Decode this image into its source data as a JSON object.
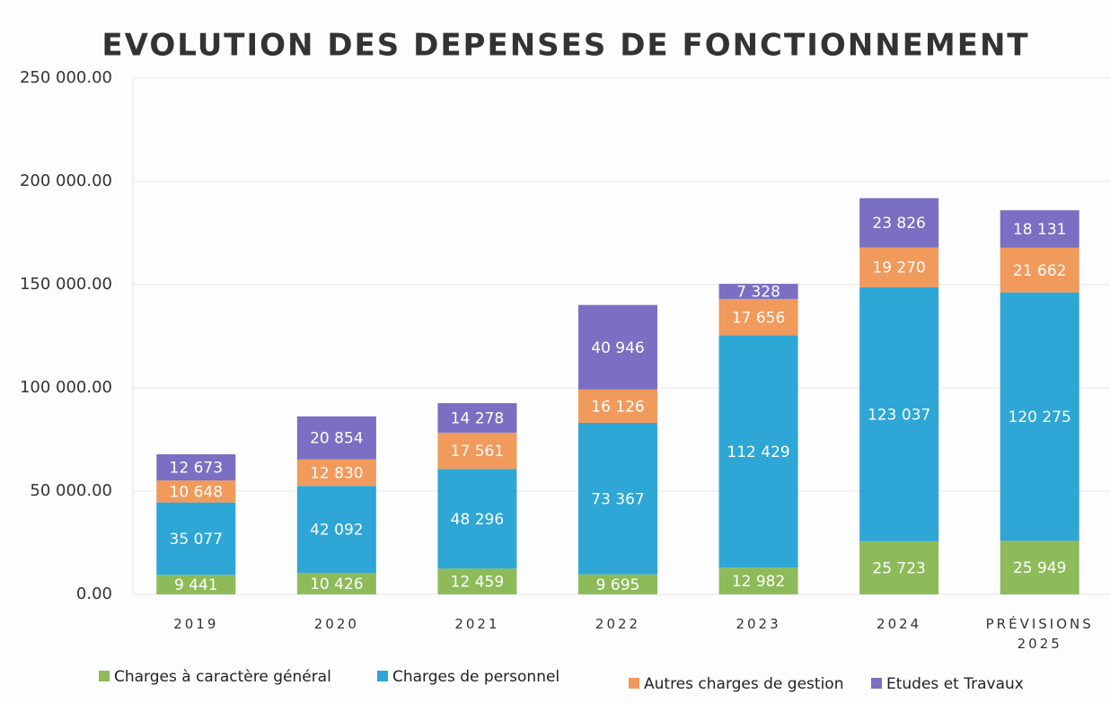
{
  "chart_data": {
    "type": "stacked_bar",
    "title": "EVOLUTION DES DEPENSES DE FONCTIONNEMENT",
    "categories": [
      "2019",
      "2020",
      "2021",
      "2022",
      "2023",
      "2024",
      "PRÉVISIONS 2025"
    ],
    "series": [
      {
        "name": "Charges à caractère général",
        "color": "#8dbb5a",
        "values": [
          9441,
          10426,
          12459,
          9695,
          12982,
          25723,
          25949
        ],
        "value_labels": [
          "9 441",
          "10 426",
          "12 459",
          "9 695",
          "12 982",
          "25 723",
          "25 949"
        ]
      },
      {
        "name": "Charges de personnel",
        "color": "#2ea6d6",
        "values": [
          35077,
          42092,
          48296,
          73367,
          112429,
          123037,
          120275
        ],
        "value_labels": [
          "35 077",
          "42 092",
          "48 296",
          "73 367",
          "112 429",
          "123 037",
          "120 275"
        ]
      },
      {
        "name": "Autres charges de gestion",
        "color": "#f09a5c",
        "values": [
          10648,
          12830,
          17561,
          16126,
          17656,
          19270,
          21662
        ],
        "value_labels": [
          "10 648",
          "12 830",
          "17 561",
          "16 126",
          "17 656",
          "19 270",
          "21 662"
        ]
      },
      {
        "name": "Etudes et Travaux",
        "color": "#7a6fc2",
        "values": [
          12673,
          20854,
          14278,
          40946,
          7328,
          23826,
          18131
        ],
        "value_labels": [
          "12 673",
          "20 854",
          "14 278",
          "40 946",
          "7 328",
          "23 826",
          "18 131"
        ]
      }
    ],
    "ylim": [
      0,
      250000
    ],
    "yticks": [
      {
        "value": 0,
        "label": "0.00"
      },
      {
        "value": 50000,
        "label": "50 000.00"
      },
      {
        "value": 100000,
        "label": "100 000.00"
      },
      {
        "value": 150000,
        "label": "150 000.00"
      },
      {
        "value": 200000,
        "label": "200 000.00"
      },
      {
        "value": 250000,
        "label": "250 000.00"
      }
    ],
    "grid": true,
    "legend": "bottom"
  }
}
